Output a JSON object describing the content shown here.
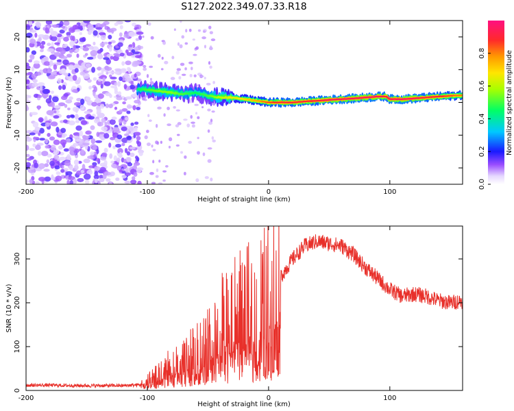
{
  "title": "S127.2022.349.07.33.R18",
  "colors": {
    "snr_line": "#e8302a",
    "ridge_core": "#e8305a",
    "noise_purple": "#7a1fe0"
  },
  "chart_data": [
    {
      "type": "heatmap",
      "xlabel": "Height of straight line (km)",
      "ylabel": "Frequency (Hz)",
      "xlim": [
        -200,
        160
      ],
      "ylim": [
        -25,
        25
      ],
      "xticks": [
        -200,
        -100,
        0,
        100
      ],
      "xtick_labels": [
        "-200",
        "-100",
        "0",
        "100"
      ],
      "yticks": [
        -20,
        -10,
        0,
        10,
        20
      ],
      "ytick_labels": [
        "-20",
        "-10",
        "0",
        "10",
        "20"
      ],
      "colorbar": {
        "label": "Normalized spectral amplitude",
        "range": [
          0.0,
          1.0
        ],
        "ticks": [
          0.0,
          0.2,
          0.4,
          0.6,
          0.8
        ],
        "tick_labels": [
          "0.0",
          "0.2",
          "0.4",
          "0.6",
          "0.8"
        ],
        "colormap": "rainbow (white-lavender-purple-blue-cyan-green-yellow-orange-red-magenta)"
      },
      "noise_region_x": [
        -200,
        -105
      ],
      "ridge": {
        "x": [
          -108,
          -100,
          -90,
          -80,
          -70,
          -60,
          -50,
          -40,
          -30,
          -20,
          -10,
          0,
          10,
          20,
          30,
          40,
          50,
          60,
          70,
          80,
          90,
          97,
          100,
          110,
          120,
          130,
          140,
          150,
          160
        ],
        "frequency": [
          4.0,
          4.0,
          3.5,
          3.0,
          2.5,
          3.0,
          2.0,
          1.5,
          1.5,
          1.0,
          0.5,
          0.0,
          0.0,
          0.0,
          0.3,
          0.5,
          0.8,
          1.0,
          1.2,
          1.5,
          1.8,
          1.8,
          1.0,
          1.0,
          1.2,
          1.5,
          1.8,
          2.0,
          2.2
        ],
        "peak_amplitude": [
          0.45,
          0.5,
          0.55,
          0.55,
          0.5,
          0.45,
          0.5,
          0.6,
          0.65,
          0.7,
          0.75,
          0.85,
          0.9,
          0.9,
          0.9,
          0.9,
          0.95,
          0.95,
          0.95,
          0.95,
          0.95,
          0.9,
          0.95,
          0.95,
          0.95,
          0.9,
          0.9,
          0.85,
          0.8
        ]
      }
    },
    {
      "type": "line",
      "xlabel": "Height of straight line (km)",
      "ylabel": "SNR (10 * v/v)",
      "xlim": [
        -200,
        160
      ],
      "ylim": [
        0,
        375
      ],
      "xticks": [
        -200,
        -100,
        0,
        100
      ],
      "xtick_labels": [
        "-200",
        "-100",
        "0",
        "100"
      ],
      "yticks": [
        0,
        100,
        200,
        300
      ],
      "ytick_labels": [
        "0",
        "100",
        "200",
        "300"
      ],
      "series": [
        {
          "x": [
            -200,
            -180,
            -160,
            -140,
            -120,
            -105,
            -100,
            -90,
            -80,
            -70,
            -60,
            -50,
            -40,
            -30,
            -20,
            -10,
            0,
            10,
            20,
            30,
            40,
            50,
            60,
            70,
            80,
            90,
            100,
            110,
            120,
            130,
            140,
            150,
            160
          ],
          "values": [
            12,
            12,
            11,
            11,
            11,
            13,
            20,
            35,
            55,
            65,
            80,
            100,
            140,
            160,
            175,
            185,
            210,
            260,
            300,
            330,
            340,
            335,
            330,
            310,
            280,
            255,
            230,
            215,
            220,
            215,
            205,
            200,
            205
          ]
        }
      ]
    }
  ]
}
